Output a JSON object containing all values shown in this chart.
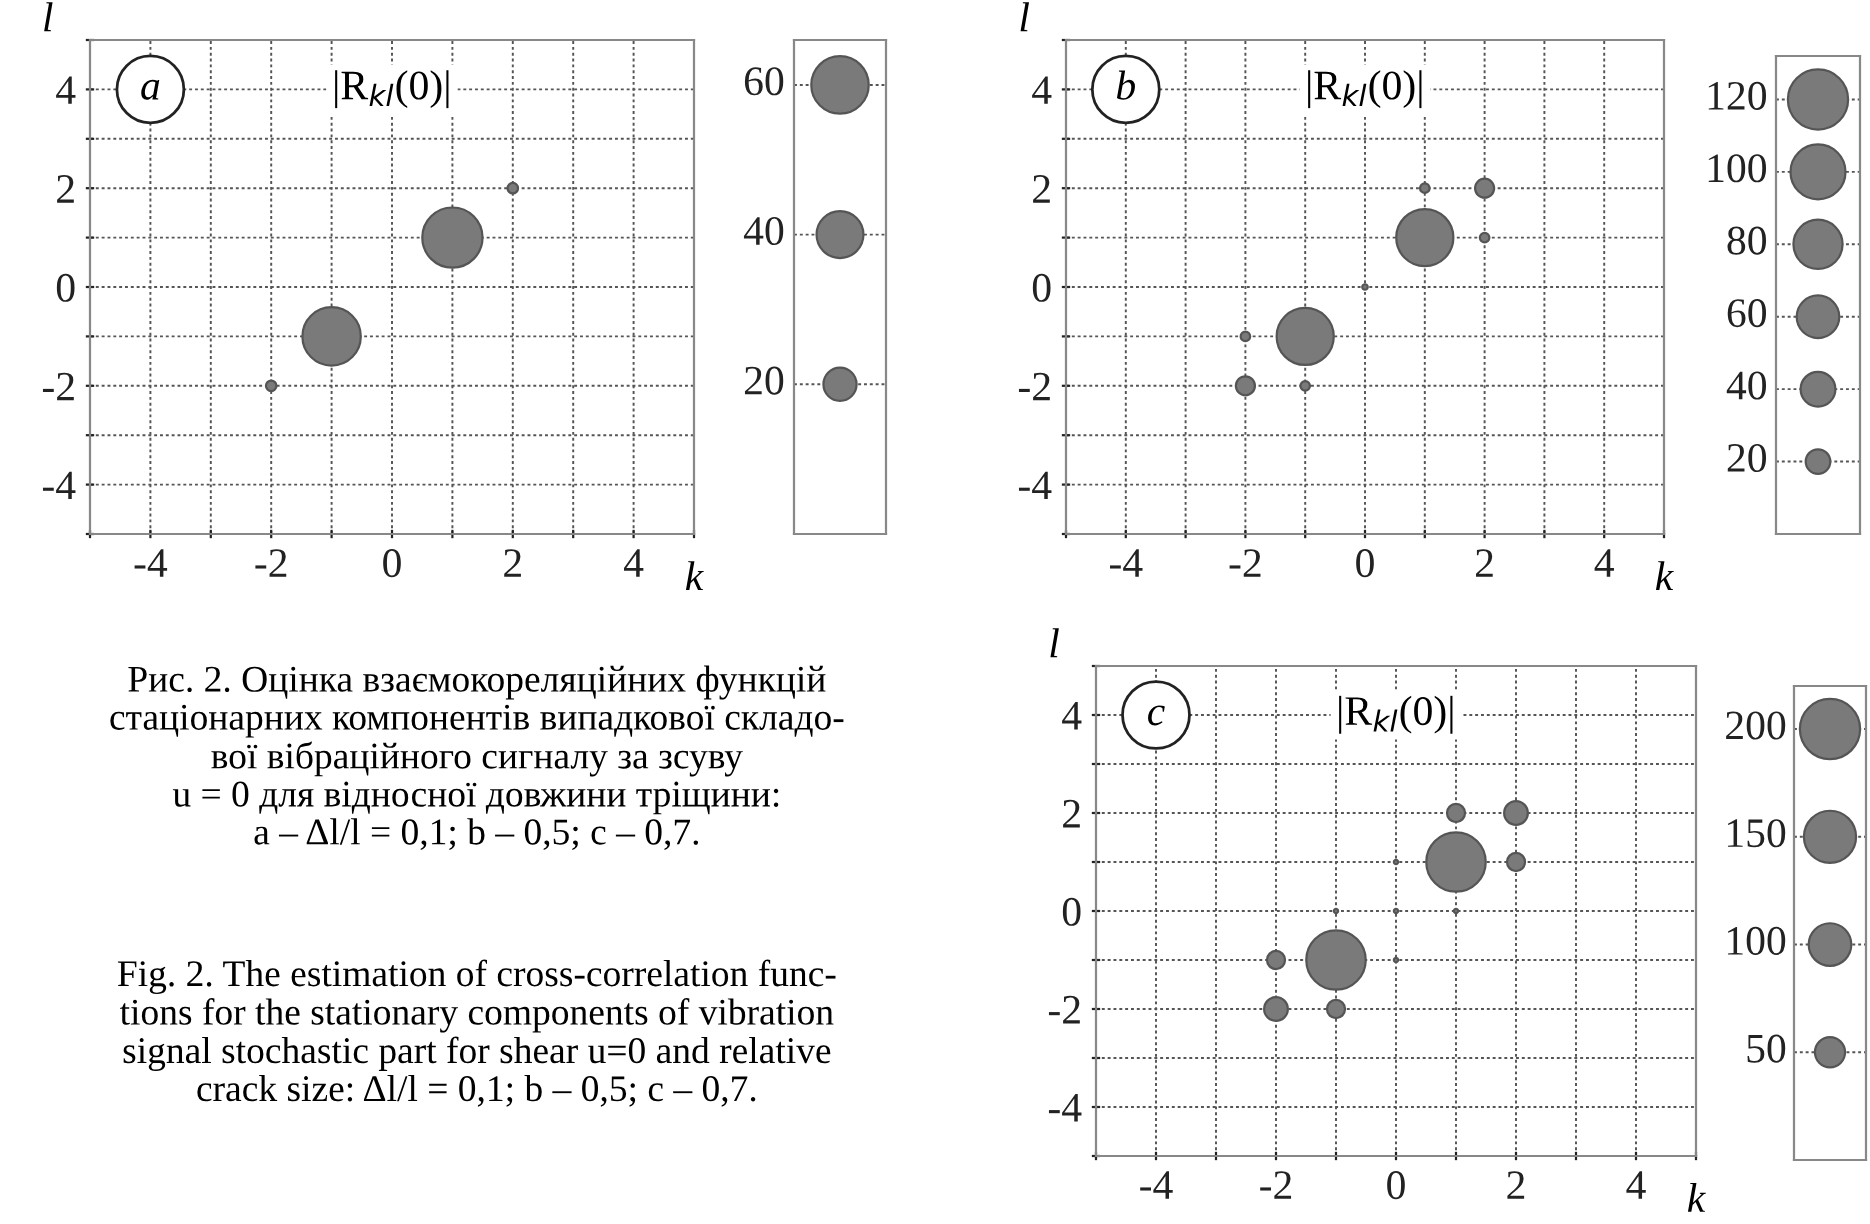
{
  "chart_data": [
    {
      "type": "bubble",
      "title": "|R$_{kl}$(0)|",
      "xlabel": "k",
      "ylabel": "l",
      "color": "#7a7a7a",
      "x": [
        -2,
        -1,
        1,
        2
      ],
      "values": [
        -2,
        -1,
        1,
        2
      ],
      "sizes": [
        2,
        62,
        66,
        2
      ],
      "size_legend": [
        20,
        40,
        60
      ],
      "xlim": [
        -5,
        5
      ],
      "ylim": [
        -5,
        5
      ],
      "xticks": [
        {
          "value": -5,
          "label": null
        },
        -4,
        {
          "value": -3,
          "label": null
        },
        -2,
        {
          "value": -1,
          "label": null
        },
        0,
        {
          "value": 1,
          "label": null
        },
        2,
        {
          "value": 3,
          "label": null
        },
        4,
        {
          "value": 5,
          "label": null
        }
      ],
      "yticks": [
        {
          "value": -5,
          "label": null
        },
        -4,
        {
          "value": -3,
          "label": null
        },
        -2,
        {
          "value": -1,
          "label": null
        },
        0,
        {
          "value": 1,
          "label": null
        },
        2,
        {
          "value": 3,
          "label": null
        },
        4,
        {
          "value": 5,
          "label": null
        }
      ],
      "grid": true,
      "annotations": [
        "a",
        "Рис. 2. Оцінка взаємокореляційних функцій\nстаціонарних компонентів випадкової складо-\nвої вібраційного сигналу за зсуву\nu = 0 для відносної довжини тріщини:\na – Δl/l = 0,1; b – 0,5; c – 0,7.",
        "Fig. 2. The estimation of cross-correlation func-\ntions for the stationary components of vibration\nsignal stochastic part for shear u=0 and relative\ncrack size: Δl/l = 0,1; b – 0,5; c – 0,7."
      ]
    },
    {
      "type": "bubble",
      "title": "|R$_{kl}$(0)|",
      "xlabel": "k",
      "ylabel": "l",
      "color": "#7a7a7a",
      "x": [
        -2,
        -2,
        -1,
        -1,
        0,
        1,
        1,
        2,
        2
      ],
      "values": [
        -2,
        -1,
        -2,
        -1,
        0,
        1,
        2,
        1,
        2
      ],
      "sizes": [
        12,
        3,
        3,
        108,
        1,
        108,
        3,
        3,
        12
      ],
      "size_legend": [
        20,
        40,
        60,
        80,
        100,
        120
      ],
      "xlim": [
        -5,
        5
      ],
      "ylim": [
        -5,
        5
      ],
      "xticks": [
        {
          "value": -5,
          "label": null
        },
        -4,
        {
          "value": -3,
          "label": null
        },
        -2,
        {
          "value": -1,
          "label": null
        },
        0,
        {
          "value": 1,
          "label": null
        },
        2,
        {
          "value": 3,
          "label": null
        },
        4,
        {
          "value": 5,
          "label": null
        }
      ],
      "yticks": [
        {
          "value": -5,
          "label": null
        },
        -4,
        {
          "value": -3,
          "label": null
        },
        -2,
        {
          "value": -1,
          "label": null
        },
        0,
        {
          "value": 1,
          "label": null
        },
        2,
        {
          "value": 3,
          "label": null
        },
        4,
        {
          "value": 5,
          "label": null
        }
      ],
      "grid": true,
      "annotations": [
        "b"
      ]
    },
    {
      "type": "bubble",
      "title": "|R$_{kl}$(0)|",
      "xlabel": "k",
      "ylabel": "l",
      "color": "#7a7a7a",
      "x": [
        -2,
        -2,
        -1,
        -1,
        -1,
        0,
        0,
        0,
        1,
        1,
        1,
        2,
        2
      ],
      "values": [
        -2,
        -1,
        -2,
        -1,
        0,
        -1,
        0,
        1,
        0,
        1,
        2,
        1,
        2
      ],
      "sizes": [
        31,
        18,
        18,
        195,
        1,
        1,
        1,
        1,
        1,
        195,
        18,
        18,
        31
      ],
      "size_legend": [
        50,
        100,
        150,
        200
      ],
      "xlim": [
        -5,
        5
      ],
      "ylim": [
        -5,
        5
      ],
      "xticks": [
        {
          "value": -5,
          "label": null
        },
        -4,
        {
          "value": -3,
          "label": null
        },
        -2,
        {
          "value": -1,
          "label": null
        },
        0,
        {
          "value": 1,
          "label": null
        },
        2,
        {
          "value": 3,
          "label": null
        },
        4,
        {
          "value": 5,
          "label": null
        }
      ],
      "yticks": [
        {
          "value": -5,
          "label": null
        },
        -4,
        {
          "value": -3,
          "label": null
        },
        -2,
        {
          "value": -1,
          "label": null
        },
        0,
        {
          "value": 1,
          "label": null
        },
        2,
        {
          "value": 3,
          "label": null
        },
        4,
        {
          "value": 5,
          "label": null
        }
      ],
      "grid": true,
      "annotations": [
        "c"
      ]
    }
  ]
}
